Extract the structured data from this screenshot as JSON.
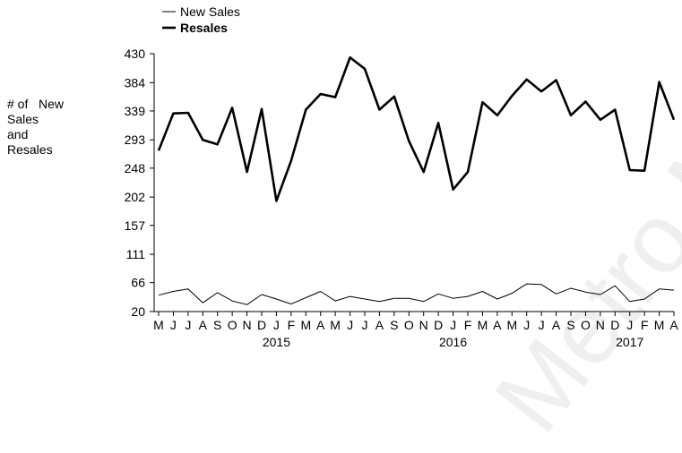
{
  "watermark": "Metro M",
  "chart_data": {
    "type": "line",
    "ylabel": "# of   New\nSales\nand\nResales",
    "ylim": [
      20,
      430
    ],
    "yticks": [
      20,
      66,
      111,
      157,
      202,
      248,
      293,
      339,
      384,
      430
    ],
    "x": [
      "M",
      "J",
      "J",
      "A",
      "S",
      "O",
      "N",
      "D",
      "J",
      "F",
      "M",
      "A",
      "M",
      "J",
      "J",
      "A",
      "S",
      "O",
      "N",
      "D",
      "J",
      "F",
      "M",
      "A",
      "M",
      "J",
      "J",
      "A",
      "S",
      "O",
      "N",
      "D",
      "J",
      "F",
      "M",
      "A"
    ],
    "year_labels": [
      {
        "label": "2015",
        "index": 8
      },
      {
        "label": "2016",
        "index": 20
      },
      {
        "label": "2017",
        "index": 32
      }
    ],
    "legend_position": "top-left",
    "series": [
      {
        "name": "New Sales",
        "style": "thin",
        "values": [
          46,
          52,
          56,
          34,
          50,
          37,
          31,
          47,
          40,
          32,
          42,
          52,
          37,
          44,
          40,
          36,
          41,
          41,
          36,
          48,
          41,
          44,
          52,
          40,
          49,
          64,
          63,
          48,
          57,
          51,
          47,
          61,
          36,
          40,
          56,
          54
        ]
      },
      {
        "name": "Resales",
        "style": "bold",
        "values": [
          276,
          335,
          336,
          293,
          286,
          344,
          242,
          342,
          196,
          260,
          341,
          366,
          361,
          424,
          406,
          341,
          362,
          291,
          242,
          320,
          214,
          242,
          353,
          332,
          363,
          389,
          370,
          388,
          332,
          354,
          325,
          341,
          245,
          244,
          385,
          325
        ]
      }
    ]
  }
}
